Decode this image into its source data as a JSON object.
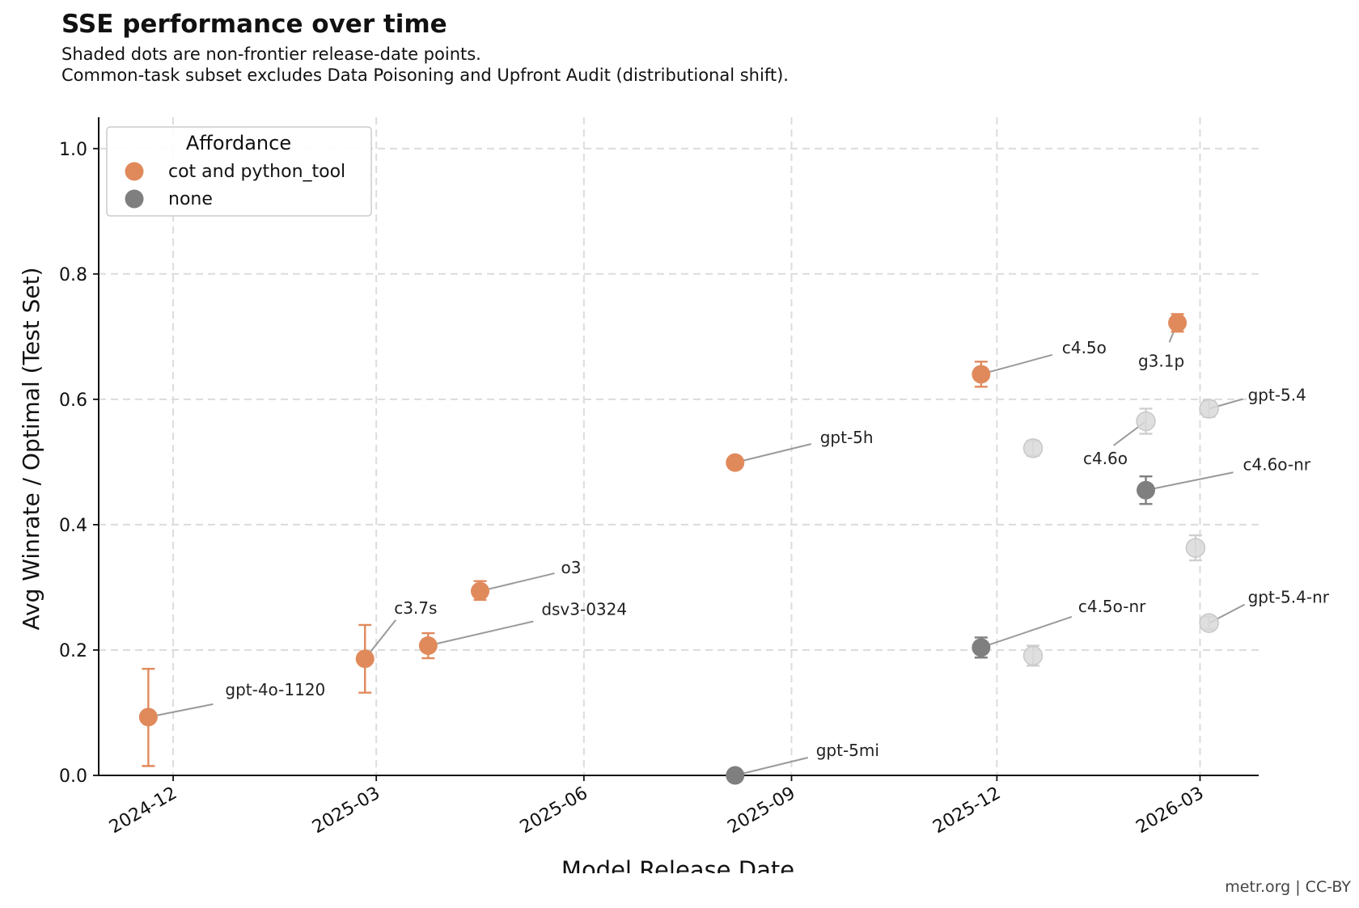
{
  "title": "SSE performance over time",
  "subtitle_lines": [
    "Shaded dots are non-frontier release-date points.",
    "Common-task subset excludes Data Poisoning and Upfront Audit (distributional shift)."
  ],
  "credit": "metr.org | CC-BY",
  "colors": {
    "cot and python_tool": "#e08a5c",
    "none": "#7f7f7f",
    "non_frontier": "#d9d9d9"
  },
  "chart_data": {
    "type": "scatter",
    "title": "SSE performance over time",
    "xlabel": "Model Release Date",
    "ylabel": "Avg Winrate / Optimal (Test Set)",
    "x_type": "date",
    "xlim": [
      "2024-10-29",
      "2026-03-27"
    ],
    "ylim": [
      0,
      1.05
    ],
    "x_ticks": [
      "2024-12-01",
      "2025-03-01",
      "2025-06-01",
      "2025-09-01",
      "2025-12-01",
      "2026-03-01"
    ],
    "x_tick_labels": [
      "2024-12",
      "2025-03",
      "2025-06",
      "2025-09",
      "2025-12",
      "2026-03"
    ],
    "y_ticks": [
      0.0,
      0.2,
      0.4,
      0.6,
      0.8,
      1.0
    ],
    "y_tick_labels": [
      "0.0",
      "0.2",
      "0.4",
      "0.6",
      "0.8",
      "1.0"
    ],
    "grid": true,
    "legend": {
      "title": "Affordance",
      "placement": "top-left",
      "entries": [
        "cot and python_tool",
        "none"
      ]
    },
    "points": [
      {
        "label": "gpt-4o-1120",
        "date": "2024-11-20",
        "y": 0.093,
        "yerr": [
          0.015,
          0.17
        ],
        "affordance": "cot and python_tool",
        "frontier": true
      },
      {
        "label": "c3.7s",
        "date": "2025-02-24",
        "y": 0.186,
        "yerr": [
          0.132,
          0.24
        ],
        "affordance": "cot and python_tool",
        "frontier": true
      },
      {
        "label": "dsv3-0324",
        "date": "2025-03-24",
        "y": 0.207,
        "yerr": [
          0.187,
          0.227
        ],
        "affordance": "cot and python_tool",
        "frontier": true
      },
      {
        "label": "o3",
        "date": "2025-04-16",
        "y": 0.294,
        "yerr": [
          0.28,
          0.31
        ],
        "affordance": "cot and python_tool",
        "frontier": true
      },
      {
        "label": "gpt-5h",
        "date": "2025-08-07",
        "y": 0.499,
        "yerr": [
          0.492,
          0.506
        ],
        "affordance": "cot and python_tool",
        "frontier": true
      },
      {
        "label": "gpt-5mi",
        "date": "2025-08-07",
        "y": 0.0,
        "yerr": [
          0.0,
          0.0
        ],
        "affordance": "none",
        "frontier": true
      },
      {
        "label": "c4.5o",
        "date": "2025-11-24",
        "y": 0.64,
        "yerr": [
          0.62,
          0.66
        ],
        "affordance": "cot and python_tool",
        "frontier": true
      },
      {
        "label": "c4.5o-nr",
        "date": "2025-11-24",
        "y": 0.204,
        "yerr": [
          0.188,
          0.22
        ],
        "affordance": "none",
        "frontier": true
      },
      {
        "label": "",
        "date": "2025-12-17",
        "y": 0.522,
        "yerr": [
          0.51,
          0.534
        ],
        "affordance": "cot and python_tool",
        "frontier": false
      },
      {
        "label": "",
        "date": "2025-12-17",
        "y": 0.191,
        "yerr": [
          0.175,
          0.207
        ],
        "affordance": "none",
        "frontier": false
      },
      {
        "label": "c4.6o",
        "date": "2026-02-05",
        "y": 0.565,
        "yerr": [
          0.545,
          0.585
        ],
        "affordance": "cot and python_tool",
        "frontier": false
      },
      {
        "label": "c4.6o-nr",
        "date": "2026-02-05",
        "y": 0.455,
        "yerr": [
          0.433,
          0.477
        ],
        "affordance": "none",
        "frontier": true
      },
      {
        "label": "g3.1p",
        "date": "2026-02-19",
        "y": 0.722,
        "yerr": [
          0.708,
          0.736
        ],
        "affordance": "cot and python_tool",
        "frontier": true
      },
      {
        "label": "",
        "date": "2026-02-27",
        "y": 0.363,
        "yerr": [
          0.343,
          0.383
        ],
        "affordance": "cot and python_tool",
        "frontier": false
      },
      {
        "label": "gpt-5.4",
        "date": "2026-03-05",
        "y": 0.585,
        "yerr": [
          0.572,
          0.598
        ],
        "affordance": "cot and python_tool",
        "frontier": false
      },
      {
        "label": "gpt-5.4-nr",
        "date": "2026-03-05",
        "y": 0.243,
        "yerr": [
          0.233,
          0.253
        ],
        "affordance": "none",
        "frontier": false
      }
    ]
  }
}
